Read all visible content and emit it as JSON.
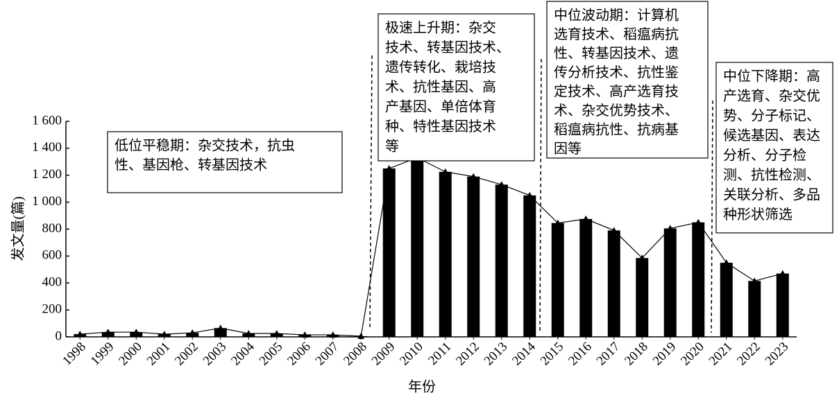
{
  "chart_data": {
    "type": "bar",
    "x_label": "年份",
    "y_label": "发文量(篇)",
    "categories": [
      "1998",
      "1999",
      "2000",
      "2001",
      "2002",
      "2003",
      "2004",
      "2005",
      "2006",
      "2007",
      "2008",
      "2009",
      "2010",
      "2011",
      "2012",
      "2013",
      "2014",
      "2015",
      "2016",
      "2017",
      "2018",
      "2019",
      "2020",
      "2021",
      "2022",
      "2023"
    ],
    "values": [
      20,
      35,
      35,
      20,
      30,
      65,
      25,
      25,
      15,
      15,
      5,
      1250,
      1330,
      1225,
      1190,
      1130,
      1050,
      845,
      875,
      790,
      585,
      805,
      850,
      550,
      415,
      470
    ],
    "color": "#000000",
    "line": true,
    "ylim": [
      0,
      1600
    ],
    "yticks": [
      0,
      200,
      400,
      600,
      800,
      {
        "value": 1000,
        "label": "1 000"
      },
      {
        "value": 1200,
        "label": "1 200"
      },
      {
        "value": 1400,
        "label": "1 400"
      },
      {
        "value": 1600,
        "label": "1 600"
      }
    ],
    "annotations": [
      {
        "lines": [
          "低位平稳期：杂交技术，抗虫",
          "性、基因枪、转基因技术"
        ]
      },
      {
        "lines": [
          "极速上升期：杂交",
          "技术、转基因技术、",
          "遗传转化、栽培技",
          "术、抗性基因、高",
          "产基因、单倍体育",
          "种、特性基因技术",
          "等"
        ]
      },
      {
        "lines": [
          "中位波动期：计算机",
          "选育技术、稻瘟病抗",
          "性、转基因技术、遗",
          "传分析技术、抗性鉴",
          "定技术、高产选育技",
          "术、杂交优势技术、",
          "稻瘟病抗性、抗病基",
          "因等"
        ]
      },
      {
        "lines": [
          "中位下降期：高",
          "产选育、杂交优",
          "势、分子标记、",
          "候选基因、表达",
          "分析、分子检",
          "测、抗性检测、",
          "关联分析、多品",
          "种形状筛选"
        ]
      }
    ]
  }
}
